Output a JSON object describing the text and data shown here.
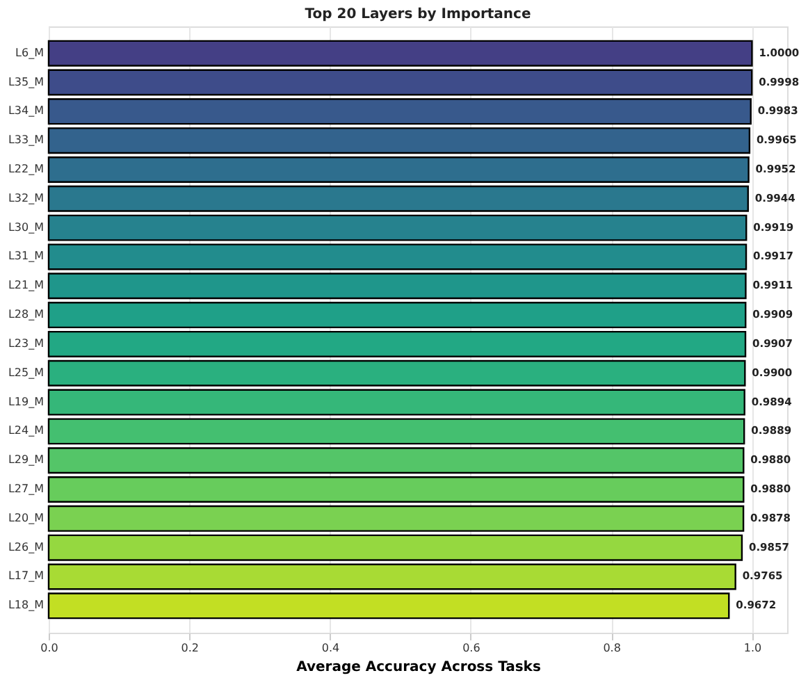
{
  "chart_data": {
    "type": "bar",
    "orientation": "horizontal",
    "title": "Top 20 Layers by Importance",
    "xlabel": "Average Accuracy Across Tasks",
    "categories": [
      "L6_M",
      "L35_M",
      "L34_M",
      "L33_M",
      "L22_M",
      "L32_M",
      "L30_M",
      "L31_M",
      "L21_M",
      "L28_M",
      "L23_M",
      "L25_M",
      "L19_M",
      "L24_M",
      "L29_M",
      "L27_M",
      "L20_M",
      "L26_M",
      "L17_M",
      "L18_M"
    ],
    "values": [
      1.0,
      0.9998,
      0.9983,
      0.9965,
      0.9952,
      0.9944,
      0.9919,
      0.9917,
      0.9911,
      0.9909,
      0.9907,
      0.99,
      0.9894,
      0.9889,
      0.988,
      0.988,
      0.9878,
      0.9857,
      0.9765,
      0.9672
    ],
    "value_labels": [
      "1.0000",
      "0.9998",
      "0.9983",
      "0.9965",
      "0.9952",
      "0.9944",
      "0.9919",
      "0.9917",
      "0.9911",
      "0.9909",
      "0.9907",
      "0.9900",
      "0.9894",
      "0.9889",
      "0.9880",
      "0.9880",
      "0.9878",
      "0.9857",
      "0.9765",
      "0.9672"
    ],
    "colors": [
      "#443f85",
      "#3e4c8a",
      "#38598c",
      "#33638d",
      "#2e6e8e",
      "#2a788e",
      "#26828e",
      "#228c8d",
      "#1f968b",
      "#1fa088",
      "#22a884",
      "#2ab07f",
      "#35b779",
      "#44bf70",
      "#54c568",
      "#67cc5c",
      "#7ad151",
      "#95d840",
      "#a8db34",
      "#c2df23"
    ],
    "xlim": [
      0,
      1.05
    ],
    "xticks": [
      {
        "value": 0,
        "label": "0.0"
      },
      {
        "value": 0.2,
        "label": "0.2"
      },
      {
        "value": 0.4,
        "label": "0.4"
      },
      {
        "value": 0.6,
        "label": "0.6"
      },
      {
        "value": 0.8,
        "label": "0.8"
      },
      {
        "value": 1.0,
        "label": "1.0"
      }
    ],
    "grid": "x"
  }
}
